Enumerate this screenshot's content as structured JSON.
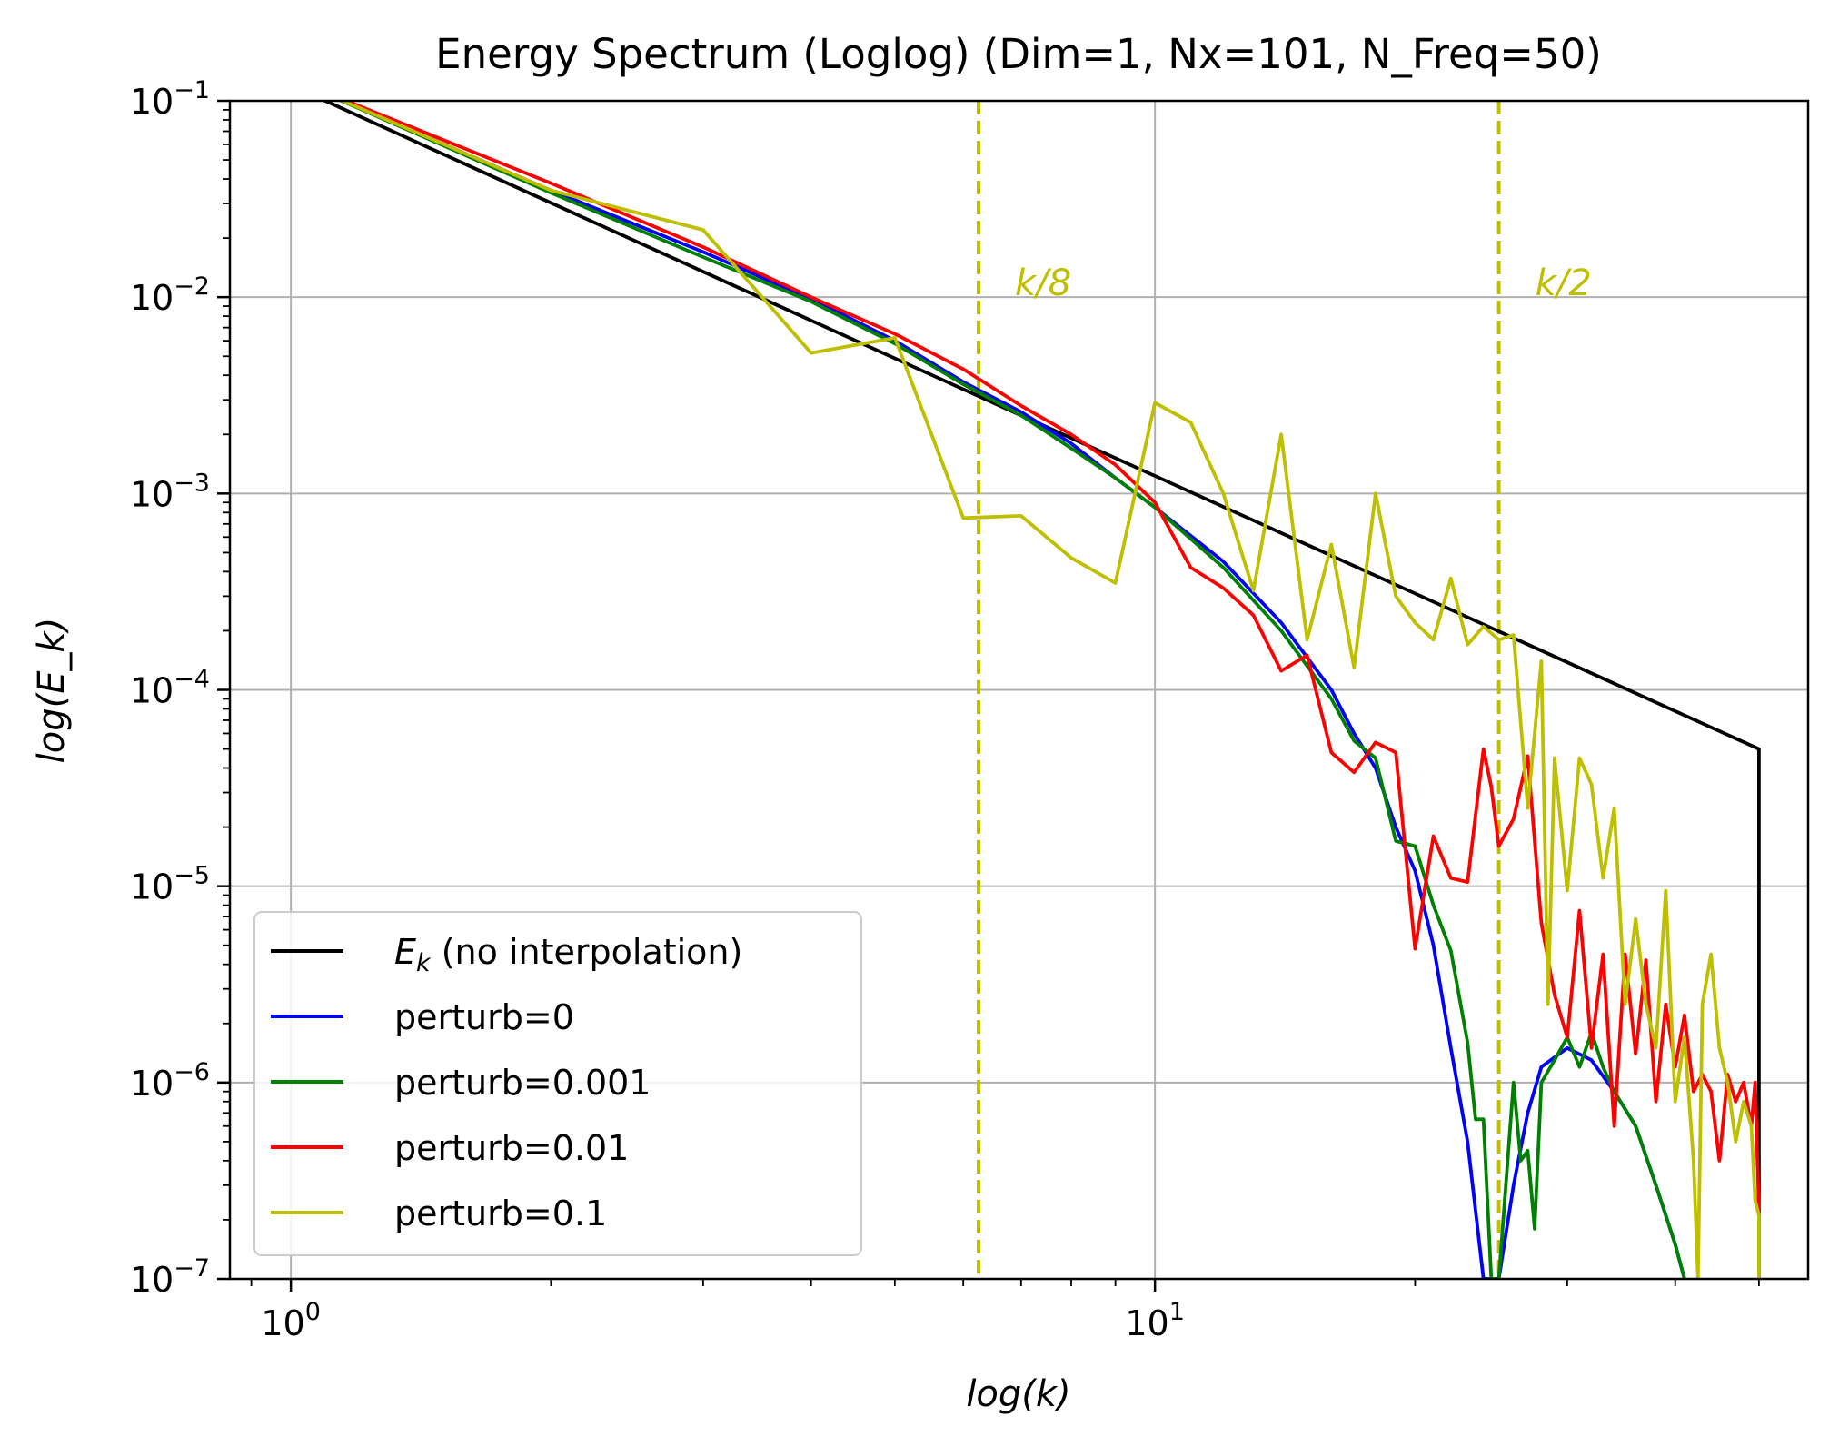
{
  "chart_data": {
    "type": "line",
    "title": "Energy Spectrum (Loglog) (Dim=1, Nx=101, N_Freq=50)",
    "xlabel": "log(k)",
    "ylabel": "log(E_k)",
    "xscale": "log",
    "yscale": "log",
    "xlim": [
      0.85,
      57
    ],
    "ylim": [
      1e-07,
      0.1
    ],
    "grid": true,
    "legend_position": "lower-left",
    "x_ticks": [
      {
        "value": 1,
        "base": "10",
        "exp": "0"
      },
      {
        "value": 10,
        "base": "10",
        "exp": "1"
      }
    ],
    "y_ticks": [
      {
        "value": 0.1,
        "base": "10",
        "exp": "−1"
      },
      {
        "value": 0.01,
        "base": "10",
        "exp": "−2"
      },
      {
        "value": 0.001,
        "base": "10",
        "exp": "−3"
      },
      {
        "value": 0.0001,
        "base": "10",
        "exp": "−4"
      },
      {
        "value": 1e-05,
        "base": "10",
        "exp": "−5"
      },
      {
        "value": 1e-06,
        "base": "10",
        "exp": "−6"
      },
      {
        "value": 1e-07,
        "base": "10",
        "exp": "−7"
      }
    ],
    "vlines": [
      {
        "x": 6.25,
        "label": "k/8",
        "color": "#bfbf00"
      },
      {
        "x": 25,
        "label": "k/2",
        "color": "#bfbf00"
      }
    ],
    "series": [
      {
        "name": "E_k (no interpolation)",
        "legend_label": "(no interpolation)",
        "legend_math": "E",
        "legend_sub": "k",
        "color": "#000000",
        "points": [
          [
            1,
            0.12
          ],
          [
            50,
            5e-05
          ],
          [
            50,
            1e-07
          ]
        ]
      },
      {
        "name": "perturb=0",
        "legend_label": "perturb=0",
        "color": "#0000ff",
        "points": [
          [
            1,
            0.13
          ],
          [
            2,
            0.035
          ],
          [
            3,
            0.017
          ],
          [
            4,
            0.0098
          ],
          [
            5,
            0.006
          ],
          [
            6,
            0.0037
          ],
          [
            7,
            0.0026
          ],
          [
            8,
            0.0018
          ],
          [
            9,
            0.0012
          ],
          [
            10,
            0.00085
          ],
          [
            12,
            0.00045
          ],
          [
            14,
            0.00022
          ],
          [
            16,
            0.0001
          ],
          [
            17,
            6e-05
          ],
          [
            18,
            4e-05
          ],
          [
            19,
            2e-05
          ],
          [
            20,
            1.2e-05
          ],
          [
            21,
            5e-06
          ],
          [
            22,
            1.5e-06
          ],
          [
            23,
            5e-07
          ],
          [
            24,
            1e-07
          ],
          [
            25,
            1e-07
          ],
          [
            26,
            3e-07
          ],
          [
            27,
            7e-07
          ],
          [
            28,
            1.2e-06
          ],
          [
            30,
            1.5e-06
          ],
          [
            32,
            1.3e-06
          ],
          [
            34,
            9e-07
          ],
          [
            36,
            6e-07
          ],
          [
            38,
            3e-07
          ],
          [
            40,
            1.5e-07
          ],
          [
            41,
            1e-07
          ]
        ]
      },
      {
        "name": "perturb=0.001",
        "legend_label": "perturb=0.001",
        "color": "#008000",
        "points": [
          [
            1,
            0.13
          ],
          [
            2,
            0.034
          ],
          [
            3,
            0.016
          ],
          [
            4,
            0.0095
          ],
          [
            5,
            0.0058
          ],
          [
            6,
            0.0036
          ],
          [
            7,
            0.0025
          ],
          [
            8,
            0.0017
          ],
          [
            9,
            0.0012
          ],
          [
            10,
            0.00085
          ],
          [
            12,
            0.00042
          ],
          [
            14,
            0.0002
          ],
          [
            16,
            9e-05
          ],
          [
            17,
            5.5e-05
          ],
          [
            18,
            4.5e-05
          ],
          [
            19,
            1.7e-05
          ],
          [
            20,
            1.6e-05
          ],
          [
            21,
            8e-06
          ],
          [
            22,
            4.7e-06
          ],
          [
            23,
            1.6e-06
          ],
          [
            23.5,
            6.5e-07
          ],
          [
            24,
            6.5e-07
          ],
          [
            24.5,
            1e-07
          ],
          [
            25,
            1e-07
          ],
          [
            26,
            1e-06
          ],
          [
            26.5,
            4e-07
          ],
          [
            27,
            4.5e-07
          ],
          [
            27.5,
            1.8e-07
          ],
          [
            28,
            1e-06
          ],
          [
            29,
            1.3e-06
          ],
          [
            30,
            1.7e-06
          ],
          [
            31,
            1.2e-06
          ],
          [
            32,
            1.8e-06
          ],
          [
            33,
            1.2e-06
          ],
          [
            34,
            9e-07
          ],
          [
            36,
            6e-07
          ],
          [
            38,
            3e-07
          ],
          [
            40,
            1.5e-07
          ],
          [
            41,
            1e-07
          ]
        ]
      },
      {
        "name": "perturb=0.01",
        "legend_label": "perturb=0.01",
        "color": "#ff0000",
        "points": [
          [
            1,
            0.13
          ],
          [
            2,
            0.038
          ],
          [
            3,
            0.018
          ],
          [
            4,
            0.01
          ],
          [
            5,
            0.0065
          ],
          [
            6,
            0.0043
          ],
          [
            7,
            0.0028
          ],
          [
            8,
            0.002
          ],
          [
            9,
            0.0014
          ],
          [
            10,
            0.0009
          ],
          [
            11,
            0.00042
          ],
          [
            12,
            0.00033
          ],
          [
            13,
            0.00024
          ],
          [
            14,
            0.000125
          ],
          [
            15,
            0.00015
          ],
          [
            16,
            4.8e-05
          ],
          [
            17,
            3.8e-05
          ],
          [
            18,
            5.4e-05
          ],
          [
            19,
            4.8e-05
          ],
          [
            20,
            4.8e-06
          ],
          [
            21,
            1.8e-05
          ],
          [
            22,
            1.1e-05
          ],
          [
            23,
            1.05e-05
          ],
          [
            24,
            5e-05
          ],
          [
            24.5,
            3.2e-05
          ],
          [
            25,
            1.6e-05
          ],
          [
            26,
            2.2e-05
          ],
          [
            27,
            4.6e-05
          ],
          [
            28,
            6.5e-06
          ],
          [
            29,
            2.8e-06
          ],
          [
            30,
            1.7e-06
          ],
          [
            31,
            7.5e-06
          ],
          [
            32,
            1.5e-06
          ],
          [
            33,
            4.5e-06
          ],
          [
            34,
            6e-07
          ],
          [
            35,
            4.5e-06
          ],
          [
            36,
            1.4e-06
          ],
          [
            37,
            4.2e-06
          ],
          [
            38,
            8e-07
          ],
          [
            39,
            2.5e-06
          ],
          [
            40,
            1.2e-06
          ],
          [
            41,
            2.2e-06
          ],
          [
            42,
            9e-07
          ],
          [
            43,
            1.1e-06
          ],
          [
            44,
            9e-07
          ],
          [
            45,
            4e-07
          ],
          [
            46,
            1.1e-06
          ],
          [
            47,
            8e-07
          ],
          [
            48,
            1e-06
          ],
          [
            49,
            6e-07
          ],
          [
            49.5,
            1e-06
          ],
          [
            50,
            2.2e-07
          ]
        ]
      },
      {
        "name": "perturb=0.1",
        "legend_label": "perturb=0.1",
        "color": "#bfbf00",
        "points": [
          [
            1,
            0.13
          ],
          [
            2,
            0.035
          ],
          [
            3,
            0.022
          ],
          [
            4,
            0.0052
          ],
          [
            5,
            0.0062
          ],
          [
            6,
            0.00075
          ],
          [
            7,
            0.00077
          ],
          [
            8,
            0.00047
          ],
          [
            9,
            0.00035
          ],
          [
            10,
            0.0029
          ],
          [
            11,
            0.0023
          ],
          [
            12,
            0.001
          ],
          [
            13,
            0.00032
          ],
          [
            14,
            0.002
          ],
          [
            15,
            0.00018
          ],
          [
            16,
            0.00055
          ],
          [
            17,
            0.00013
          ],
          [
            18,
            0.001
          ],
          [
            19,
            0.0003
          ],
          [
            20,
            0.00022
          ],
          [
            21,
            0.00018
          ],
          [
            22,
            0.00037
          ],
          [
            23,
            0.00017
          ],
          [
            24,
            0.00021
          ],
          [
            25,
            0.00018
          ],
          [
            26,
            0.00019
          ],
          [
            27,
            2.5e-05
          ],
          [
            28,
            0.00014
          ],
          [
            28.5,
            2.5e-06
          ],
          [
            29,
            4.5e-05
          ],
          [
            30,
            9.5e-06
          ],
          [
            31,
            4.5e-05
          ],
          [
            32,
            3.3e-05
          ],
          [
            33,
            1.1e-05
          ],
          [
            34,
            2.5e-05
          ],
          [
            35,
            2.5e-06
          ],
          [
            36,
            6.8e-06
          ],
          [
            37,
            2.5e-06
          ],
          [
            38,
            1.5e-06
          ],
          [
            39,
            9.5e-06
          ],
          [
            40,
            8e-07
          ],
          [
            41,
            1.7e-06
          ],
          [
            42,
            4e-07
          ],
          [
            42.5,
            1e-07
          ],
          [
            43,
            2.5e-06
          ],
          [
            44,
            4.5e-06
          ],
          [
            45,
            1.5e-06
          ],
          [
            46,
            1e-06
          ],
          [
            47,
            5e-07
          ],
          [
            48,
            8e-07
          ],
          [
            49,
            6e-07
          ],
          [
            49.5,
            2.5e-07
          ],
          [
            50,
            2.1e-07
          ],
          [
            50,
            1e-07
          ]
        ]
      }
    ]
  }
}
